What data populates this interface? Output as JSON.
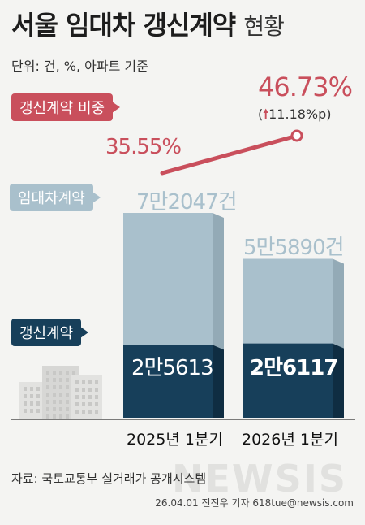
{
  "title": {
    "main": "서울 임대차 갱신계약",
    "sub": "현황"
  },
  "unit_note": "단위: 건, %, 아파트 기준",
  "legend": {
    "ratio": "갱신계약 비중",
    "total": "임대차계약",
    "renewal": "갱신계약"
  },
  "colors": {
    "ratio": "#c94f5c",
    "total": "#a9c0cc",
    "renewal": "#173f5a",
    "background": "#f4f4f2"
  },
  "chart_data": {
    "type": "bar",
    "categories": [
      "2025년 1분기",
      "2026년 1분기"
    ],
    "series": [
      {
        "name": "임대차계약",
        "values": [
          72047,
          55890
        ],
        "labels": [
          "7만2047건",
          "5만5890건"
        ]
      },
      {
        "name": "갱신계약",
        "values": [
          25613,
          26117
        ],
        "labels": [
          "2만5613",
          "2만6117"
        ]
      },
      {
        "name": "갱신계약 비중",
        "values": [
          35.55,
          46.73
        ],
        "labels": [
          "35.55%",
          "46.73%"
        ]
      }
    ],
    "annotation": "(↑11.18%p)"
  },
  "change_label": "11.18%p",
  "source": "자료: 국토교통부 실거래가 공개시스템",
  "credit": "26.04.01 전진우 기자 618tue@newsis.com",
  "watermark": "NEWSIS"
}
